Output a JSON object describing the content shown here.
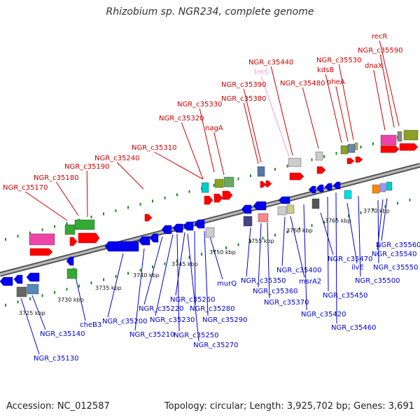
{
  "header": {
    "title": "Rhizobium sp. NGR234, complete genome"
  },
  "footer": {
    "accession": "Accession: NC_012587",
    "topology": "Topology: circular; Length: 3,925,702 bp; Genes: 3,691"
  },
  "colors": {
    "backbone": "#808080",
    "forward_label": "#cc0000",
    "reverse_label": "#0000cc",
    "rna_label": "#ff99cc",
    "ticks": "#228822",
    "forward_gene": "#ff0000",
    "reverse_gene": "#0000ee"
  },
  "scale_labels": [
    "3725 kbp",
    "3730 kbp",
    "3735 kbp",
    "3740 kbp",
    "3745 kbp",
    "3750 kbp",
    "3755 kbp",
    "3760 kbp",
    "3765 kbp",
    "3770 kbp"
  ],
  "forward_genes": [
    {
      "label": "recR",
      "type": "gene"
    },
    {
      "label": "NGR_c35590",
      "type": "gene"
    },
    {
      "label": "dnaX",
      "type": "gene"
    },
    {
      "label": "NGR_c35530",
      "type": "gene"
    },
    {
      "label": "kdsB",
      "type": "gene"
    },
    {
      "label": "pheA",
      "type": "gene"
    },
    {
      "label": "NGR_c35440",
      "type": "gene"
    },
    {
      "label": "trnS",
      "type": "rna"
    },
    {
      "label": "NGR_c35480",
      "type": "gene"
    },
    {
      "label": "NGR_c35390",
      "type": "gene"
    },
    {
      "label": "NGR_c35380",
      "type": "gene"
    },
    {
      "label": "NGR_c35330",
      "type": "gene"
    },
    {
      "label": "NGR_c35320",
      "type": "gene"
    },
    {
      "label": "nagA",
      "type": "gene"
    },
    {
      "label": "NGR_c35310",
      "type": "gene"
    },
    {
      "label": "NGR_c35240",
      "type": "gene"
    },
    {
      "label": "NGR_c35190",
      "type": "gene"
    },
    {
      "label": "NGR_c35180",
      "type": "gene"
    },
    {
      "label": "NGR_c35170",
      "type": "gene"
    }
  ],
  "reverse_genes": [
    {
      "label": "NGR_c35560"
    },
    {
      "label": "NGR_c35540"
    },
    {
      "label": "NGR_c35550"
    },
    {
      "label": "NGR_c35470"
    },
    {
      "label": "ilvE"
    },
    {
      "label": "NGR_c35500"
    },
    {
      "label": "NGR_c35400"
    },
    {
      "label": "msrA2"
    },
    {
      "label": "NGR_c35450"
    },
    {
      "label": "NGR_c35350"
    },
    {
      "label": "NGR_c35360"
    },
    {
      "label": "NGR_c35370"
    },
    {
      "label": "NGR_c35420"
    },
    {
      "label": "NGR_c35460"
    },
    {
      "label": "murQ"
    },
    {
      "label": "NGR_c35280"
    },
    {
      "label": "NGR_c35290"
    },
    {
      "label": "NGR_c35260"
    },
    {
      "label": "NGR_c35220"
    },
    {
      "label": "NGR_c35230"
    },
    {
      "label": "NGR_c35270"
    },
    {
      "label": "NGR_c35250"
    },
    {
      "label": "NGR_c35200"
    },
    {
      "label": "NGR_c35210"
    },
    {
      "label": "cheB3"
    },
    {
      "label": "NGR_c35140"
    },
    {
      "label": "NGR_c35130"
    }
  ]
}
